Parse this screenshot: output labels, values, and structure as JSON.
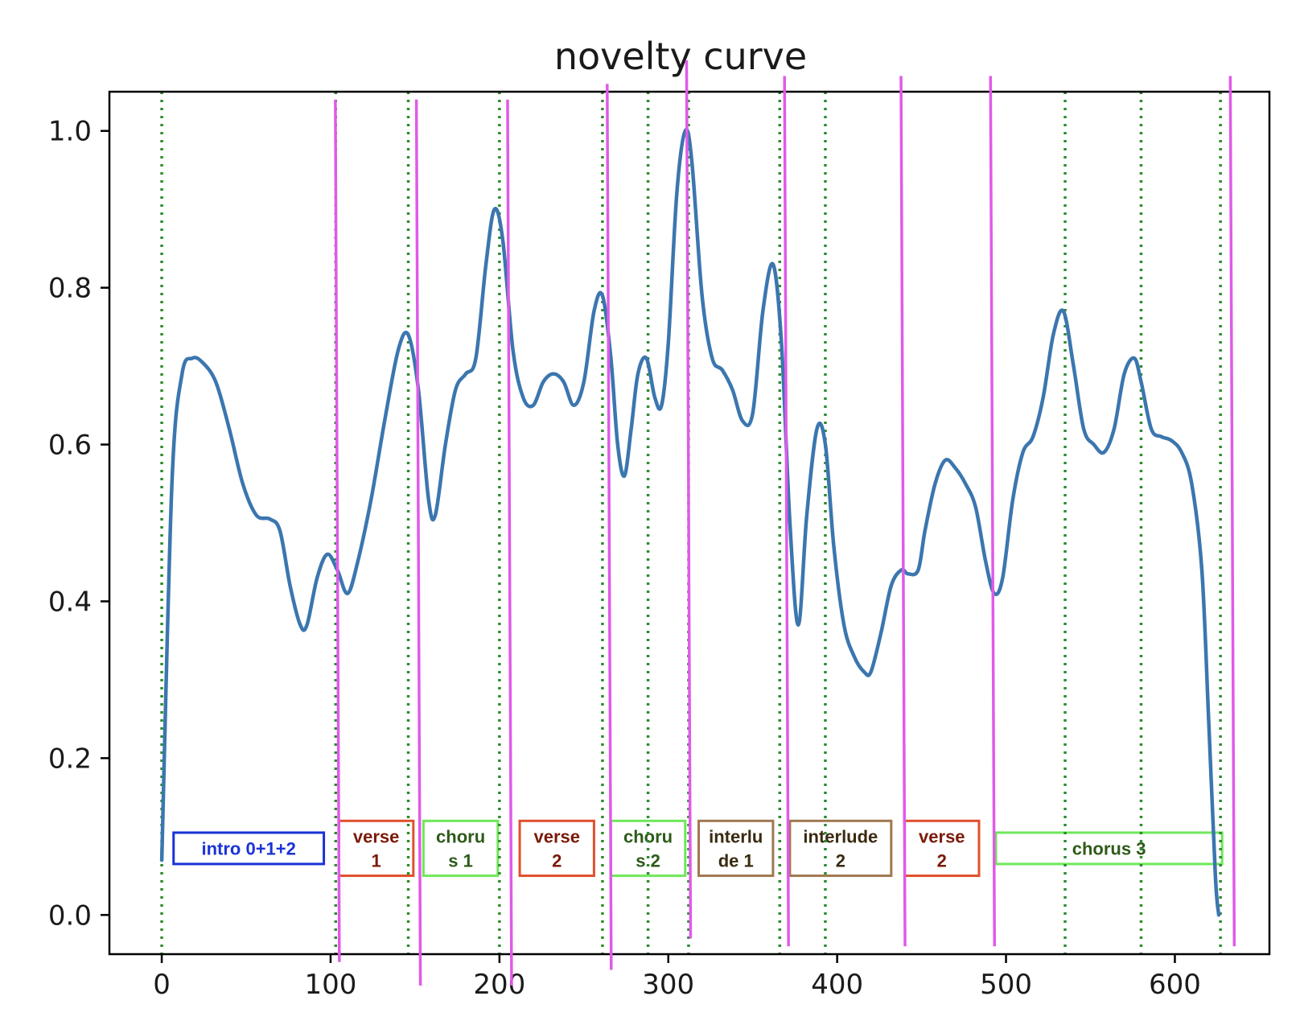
{
  "chart_data": {
    "type": "line",
    "title": "novelty curve",
    "xlabel": "",
    "ylabel": "",
    "xlim": [
      -31,
      656
    ],
    "ylim": [
      -0.05,
      1.05
    ],
    "xticks": [
      0,
      100,
      200,
      300,
      400,
      500,
      600
    ],
    "yticks": [
      "0.0",
      "0.2",
      "0.4",
      "0.6",
      "0.8",
      "1.0"
    ],
    "grid": false,
    "curve_color": "#3b76af",
    "series": [
      {
        "x": [
          0,
          6,
          12,
          18,
          24,
          32,
          40,
          48,
          56,
          64,
          70,
          76,
          82,
          86,
          92,
          98,
          104,
          110,
          116,
          124,
          132,
          140,
          146,
          152,
          158,
          162,
          168,
          174,
          180,
          186,
          192,
          197,
          202,
          208,
          214,
          220,
          226,
          232,
          238,
          244,
          250,
          256,
          261,
          266,
          270,
          274,
          278,
          282,
          287,
          292,
          296,
          300,
          305,
          310,
          314,
          320,
          326,
          332,
          338,
          344,
          350,
          356,
          362,
          367,
          372,
          377,
          382,
          388,
          393,
          398,
          404,
          410,
          416,
          420,
          426,
          432,
          438,
          442,
          448,
          452,
          458,
          464,
          470,
          476,
          482,
          488,
          493,
          498,
          504,
          510,
          516,
          522,
          528,
          534,
          540,
          546,
          552,
          558,
          564,
          570,
          576,
          580,
          586,
          592,
          598,
          604,
          610,
          616,
          620,
          624,
          626
        ],
        "y": [
          0.07,
          0.55,
          0.69,
          0.71,
          0.705,
          0.68,
          0.62,
          0.55,
          0.51,
          0.505,
          0.49,
          0.42,
          0.37,
          0.37,
          0.43,
          0.46,
          0.44,
          0.41,
          0.45,
          0.53,
          0.63,
          0.72,
          0.74,
          0.67,
          0.53,
          0.51,
          0.6,
          0.67,
          0.69,
          0.71,
          0.83,
          0.9,
          0.86,
          0.72,
          0.66,
          0.65,
          0.68,
          0.69,
          0.68,
          0.65,
          0.68,
          0.77,
          0.79,
          0.71,
          0.6,
          0.56,
          0.62,
          0.69,
          0.71,
          0.66,
          0.65,
          0.73,
          0.92,
          1.0,
          0.96,
          0.79,
          0.71,
          0.695,
          0.67,
          0.63,
          0.64,
          0.77,
          0.83,
          0.73,
          0.5,
          0.37,
          0.51,
          0.62,
          0.6,
          0.47,
          0.37,
          0.33,
          0.31,
          0.31,
          0.36,
          0.42,
          0.44,
          0.435,
          0.44,
          0.49,
          0.55,
          0.58,
          0.57,
          0.55,
          0.52,
          0.45,
          0.41,
          0.43,
          0.53,
          0.59,
          0.61,
          0.66,
          0.74,
          0.77,
          0.7,
          0.62,
          0.6,
          0.59,
          0.62,
          0.69,
          0.71,
          0.68,
          0.62,
          0.61,
          0.605,
          0.59,
          0.55,
          0.44,
          0.25,
          0.05,
          0.0
        ]
      }
    ],
    "boundaries_green_dotted": [
      0,
      103,
      146,
      200,
      261,
      288,
      312,
      366,
      393,
      535,
      580,
      627
    ],
    "boundaries_magenta": [
      {
        "x": 104,
        "y_top": 1.04,
        "y_bottom": -0.06
      },
      {
        "x": 152,
        "y_top": 1.04,
        "y_bottom": -0.09
      },
      {
        "x": 206,
        "y_top": 1.04,
        "y_bottom": -0.09
      },
      {
        "x": 265,
        "y_top": 1.06,
        "y_bottom": -0.07
      },
      {
        "x": 312,
        "y_top": 1.09,
        "y_bottom": -0.03
      },
      {
        "x": 370,
        "y_top": 1.07,
        "y_bottom": -0.04
      },
      {
        "x": 439,
        "y_top": 1.07,
        "y_bottom": -0.04
      },
      {
        "x": 492,
        "y_top": 1.07,
        "y_bottom": -0.04
      },
      {
        "x": 634,
        "y_top": 1.07,
        "y_bottom": -0.04
      }
    ],
    "segments": [
      {
        "lines": [
          "intro 0+1+2"
        ],
        "x0": 7,
        "x1": 96,
        "y_center": 0.085,
        "y_half": 0.02,
        "border": "#1a32d6",
        "text": "#1a32d6"
      },
      {
        "lines": [
          "verse",
          "1"
        ],
        "x0": 105,
        "x1": 149,
        "y_center": 0.085,
        "y_half": 0.035,
        "border": "#e0502d",
        "text": "#7a1a0a"
      },
      {
        "lines": [
          "choru",
          "s 1"
        ],
        "x0": 155,
        "x1": 199,
        "y_center": 0.085,
        "y_half": 0.035,
        "border": "#6fe85a",
        "text": "#2e5a1a"
      },
      {
        "lines": [
          "verse",
          "2"
        ],
        "x0": 212,
        "x1": 256,
        "y_center": 0.085,
        "y_half": 0.035,
        "border": "#e0502d",
        "text": "#7a1a0a"
      },
      {
        "lines": [
          "choru",
          "s 2"
        ],
        "x0": 266,
        "x1": 310,
        "y_center": 0.085,
        "y_half": 0.035,
        "border": "#6fe85a",
        "text": "#2e5a1a"
      },
      {
        "lines": [
          "interlu",
          "de 1"
        ],
        "x0": 318,
        "x1": 362,
        "y_center": 0.085,
        "y_half": 0.035,
        "border": "#a07850",
        "text": "#3a2a10"
      },
      {
        "lines": [
          "interlude",
          "2"
        ],
        "x0": 372,
        "x1": 432,
        "y_center": 0.085,
        "y_half": 0.035,
        "border": "#a07850",
        "text": "#3a2a10"
      },
      {
        "lines": [
          "verse",
          "2"
        ],
        "x0": 440,
        "x1": 484,
        "y_center": 0.085,
        "y_half": 0.035,
        "border": "#e0502d",
        "text": "#7a1a0a"
      },
      {
        "lines": [
          "chorus 3"
        ],
        "x0": 494,
        "x1": 628,
        "y_center": 0.085,
        "y_half": 0.02,
        "border": "#6fe85a",
        "text": "#2e5a1a"
      }
    ]
  }
}
